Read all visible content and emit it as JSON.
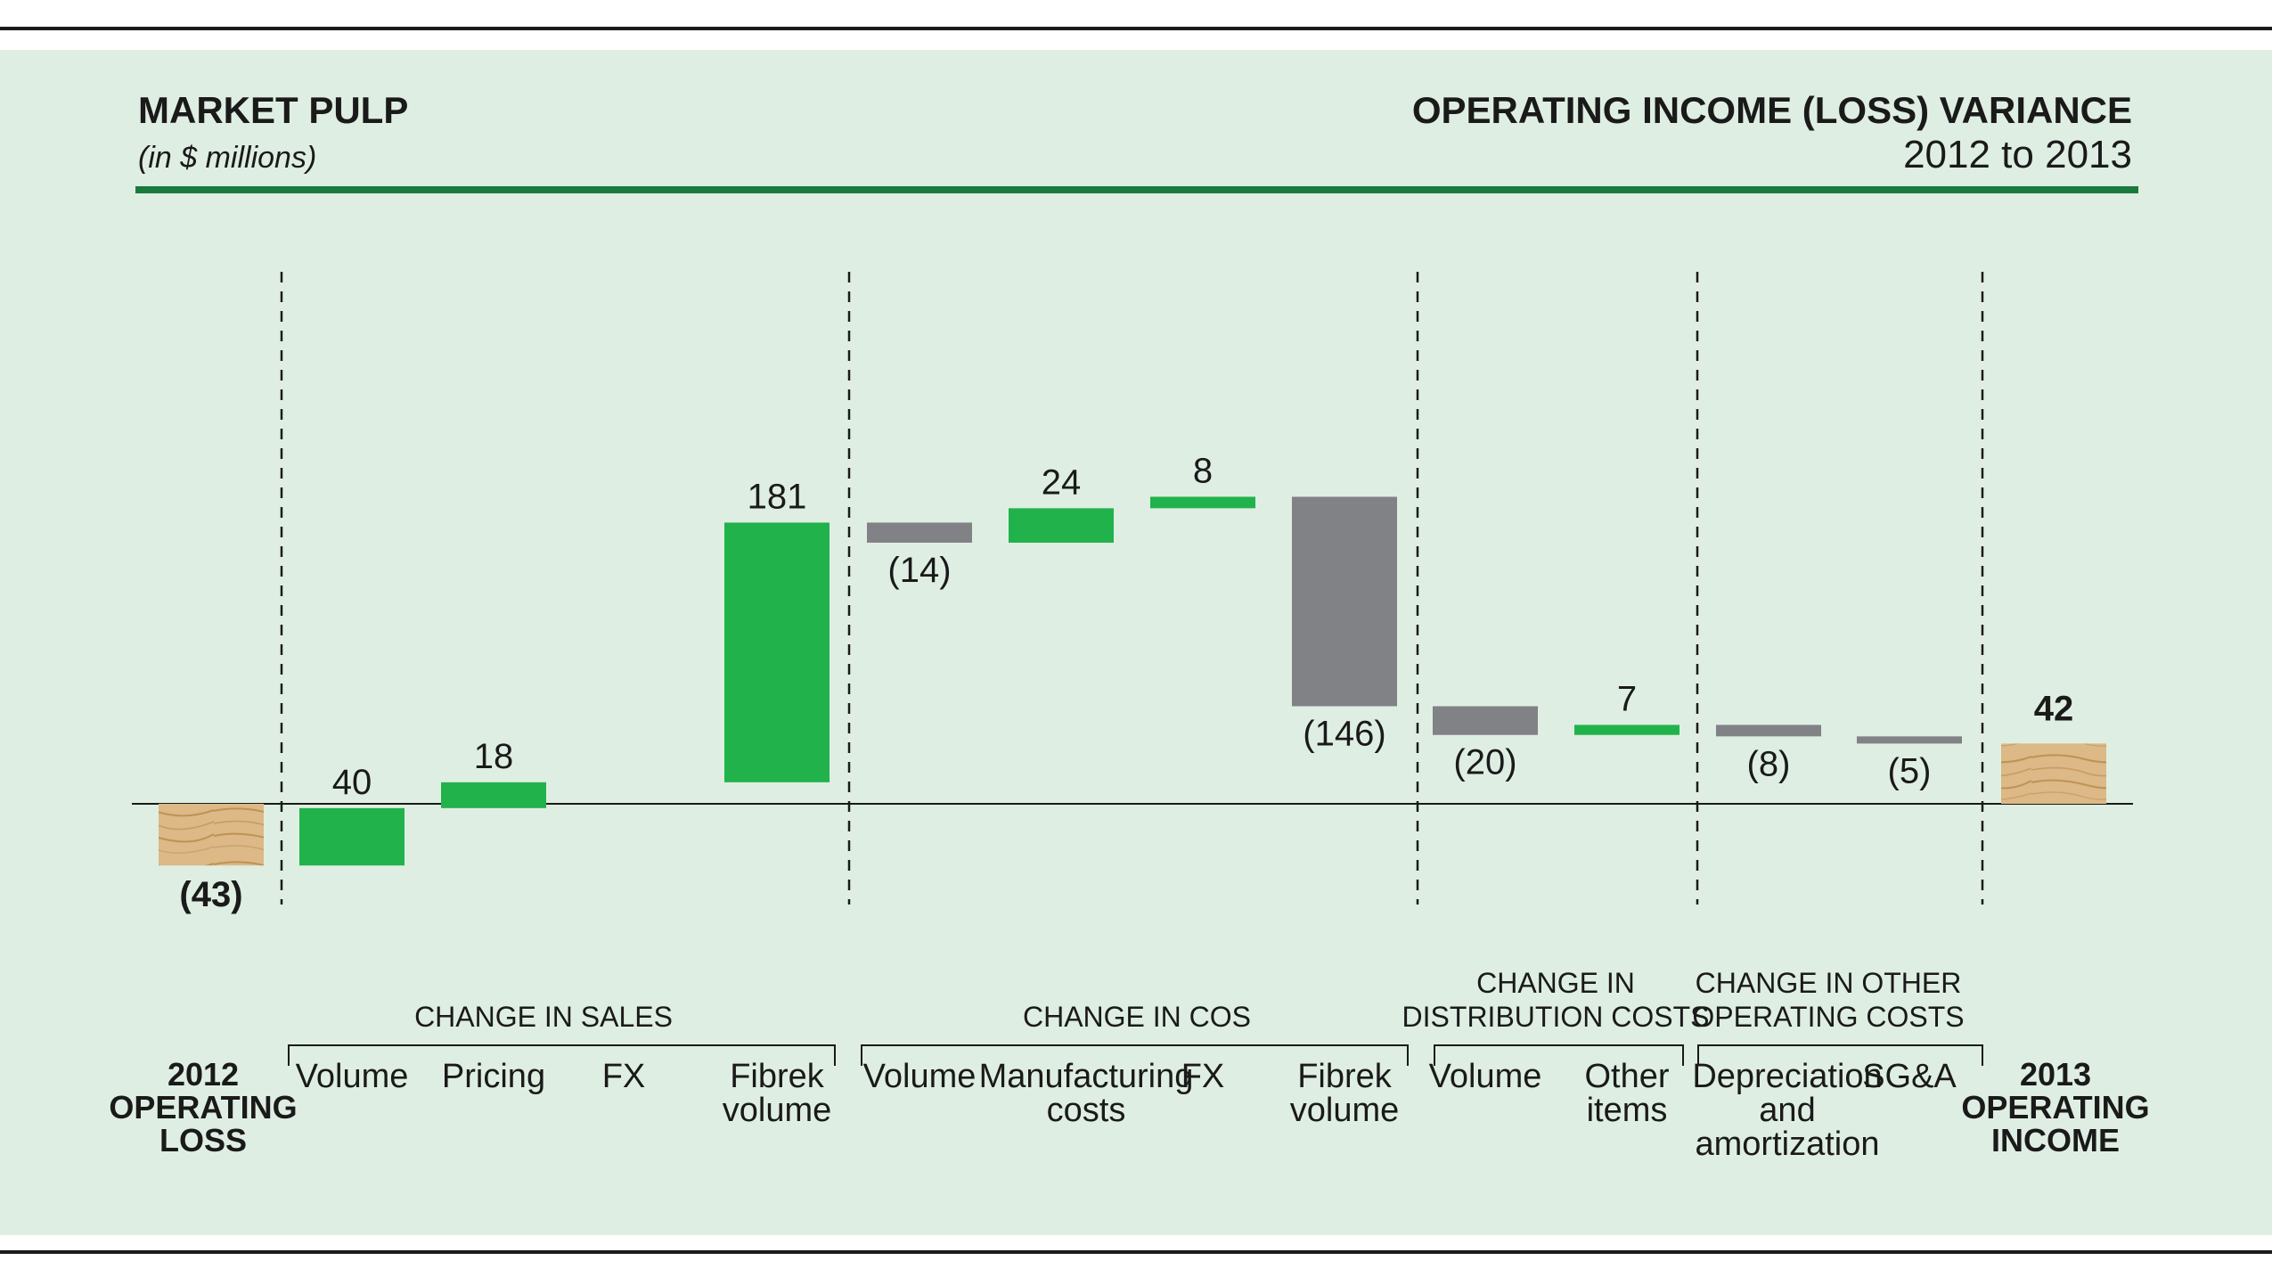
{
  "page": {
    "title": "MARKET PULP",
    "subtitle": "(in $ millions)",
    "right_title": "OPERATING INCOME (LOSS) VARIANCE",
    "period": "2012 to 2013"
  },
  "colors": {
    "background": "#ffffff",
    "panel": "#dfeee2",
    "rule": "#1a7a3e",
    "increase": "#21b24b",
    "decrease": "#808285",
    "endpoint": "#d9b57f",
    "text": "#1a1a1a"
  },
  "chart_data": {
    "type": "bar",
    "subtype": "waterfall",
    "title": "MARKET PULP",
    "subtitle": "(in $ millions)",
    "start": {
      "value": -43,
      "label": "(43)",
      "name_lines": [
        "2012",
        "OPERATING",
        "LOSS"
      ]
    },
    "end": {
      "value": 42,
      "label": "42",
      "name_lines": [
        "2013",
        "OPERATING",
        "INCOME"
      ]
    },
    "groups": [
      {
        "name_lines": [
          "CHANGE IN SALES"
        ],
        "steps": [
          {
            "category_lines": [
              "Volume"
            ],
            "value": 40,
            "label": "40"
          },
          {
            "category_lines": [
              "Pricing"
            ],
            "value": 18,
            "label": "18"
          },
          {
            "category_lines": [
              "FX"
            ],
            "value": 0,
            "label": ""
          },
          {
            "category_lines": [
              "Fibrek",
              "volume"
            ],
            "value": 181,
            "label": "181"
          }
        ]
      },
      {
        "name_lines": [
          "CHANGE IN COS"
        ],
        "steps": [
          {
            "category_lines": [
              "Volume"
            ],
            "value": -14,
            "label": "(14)"
          },
          {
            "category_lines": [
              "Manufacturing",
              "costs"
            ],
            "value": 24,
            "label": "24"
          },
          {
            "category_lines": [
              "FX"
            ],
            "value": 8,
            "label": "8"
          },
          {
            "category_lines": [
              "Fibrek",
              "volume"
            ],
            "value": -146,
            "label": "(146)"
          }
        ]
      },
      {
        "name_lines": [
          "CHANGE IN",
          "DISTRIBUTION COSTS"
        ],
        "steps": [
          {
            "category_lines": [
              "Volume"
            ],
            "value": -20,
            "label": "(20)"
          },
          {
            "category_lines": [
              "Other",
              "items"
            ],
            "value": 7,
            "label": "7"
          }
        ]
      },
      {
        "name_lines": [
          "CHANGE IN OTHER",
          "OPERATING COSTS"
        ],
        "steps": [
          {
            "category_lines": [
              "Depreciation",
              "and",
              "amortization"
            ],
            "value": -8,
            "label": "(8)"
          },
          {
            "category_lines": [
              "SG&A"
            ],
            "value": -5,
            "label": "(5)"
          }
        ]
      }
    ]
  }
}
